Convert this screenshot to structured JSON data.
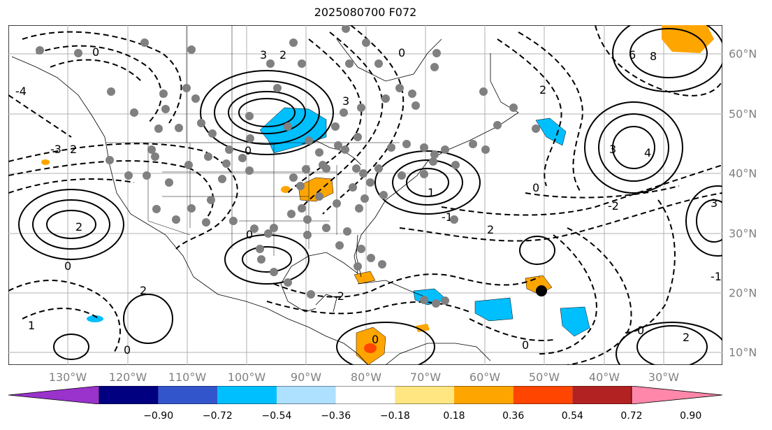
{
  "title": "2025080700 F072",
  "lat_labels": [
    "60°N",
    "50°N",
    "40°N",
    "30°N",
    "20°N",
    "10°N"
  ],
  "lon_labels": [
    "130°W",
    "120°W",
    "110°W",
    "100°W",
    "90°W",
    "80°W",
    "70°W",
    "60°W",
    "50°W",
    "40°W",
    "30°W"
  ],
  "contour_labels": [
    "0",
    "1",
    "2",
    "3",
    "4",
    "6",
    "8",
    "-1",
    "-2",
    "-3",
    "-4"
  ],
  "colorbar": {
    "ticks": [
      "−0.90",
      "−0.72",
      "−0.54",
      "−0.36",
      "−0.18",
      "0.18",
      "0.36",
      "0.54",
      "0.72",
      "0.90"
    ],
    "colors": [
      "#9933cc",
      "#000080",
      "#3355cc",
      "#00bfff",
      "#aee0ff",
      "#ffffff",
      "#ffe680",
      "#ffa500",
      "#ff4500",
      "#b22222",
      "#ff88aa"
    ]
  },
  "colors": {
    "orange": "#ffa500",
    "cyan": "#00bfff",
    "red": "#ff4500",
    "grid": "#b0b0b0",
    "stations": "#808080"
  }
}
